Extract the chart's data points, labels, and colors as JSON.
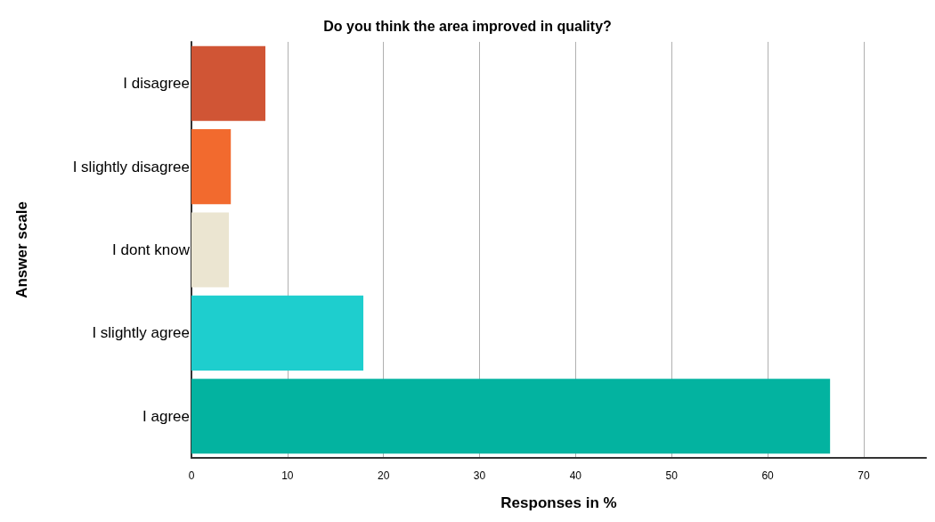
{
  "chart_data": {
    "type": "bar",
    "orientation": "horizontal",
    "title": "Do you think the area improved in quality?",
    "xlabel": "Responses in %",
    "ylabel": "Answer scale",
    "categories": [
      "I disagree",
      "I slightly disagree",
      "I dont know",
      "I slightly agree",
      "I agree"
    ],
    "values": [
      7.7,
      4.1,
      3.9,
      17.9,
      66.5
    ],
    "colors": [
      "#d05535",
      "#f26a2e",
      "#ebe5d1",
      "#1ecece",
      "#03b3a0"
    ],
    "xlim": [
      0,
      76.5
    ],
    "xticks": [
      0,
      10,
      20,
      30,
      40,
      50,
      60,
      70
    ],
    "grid": "x"
  }
}
